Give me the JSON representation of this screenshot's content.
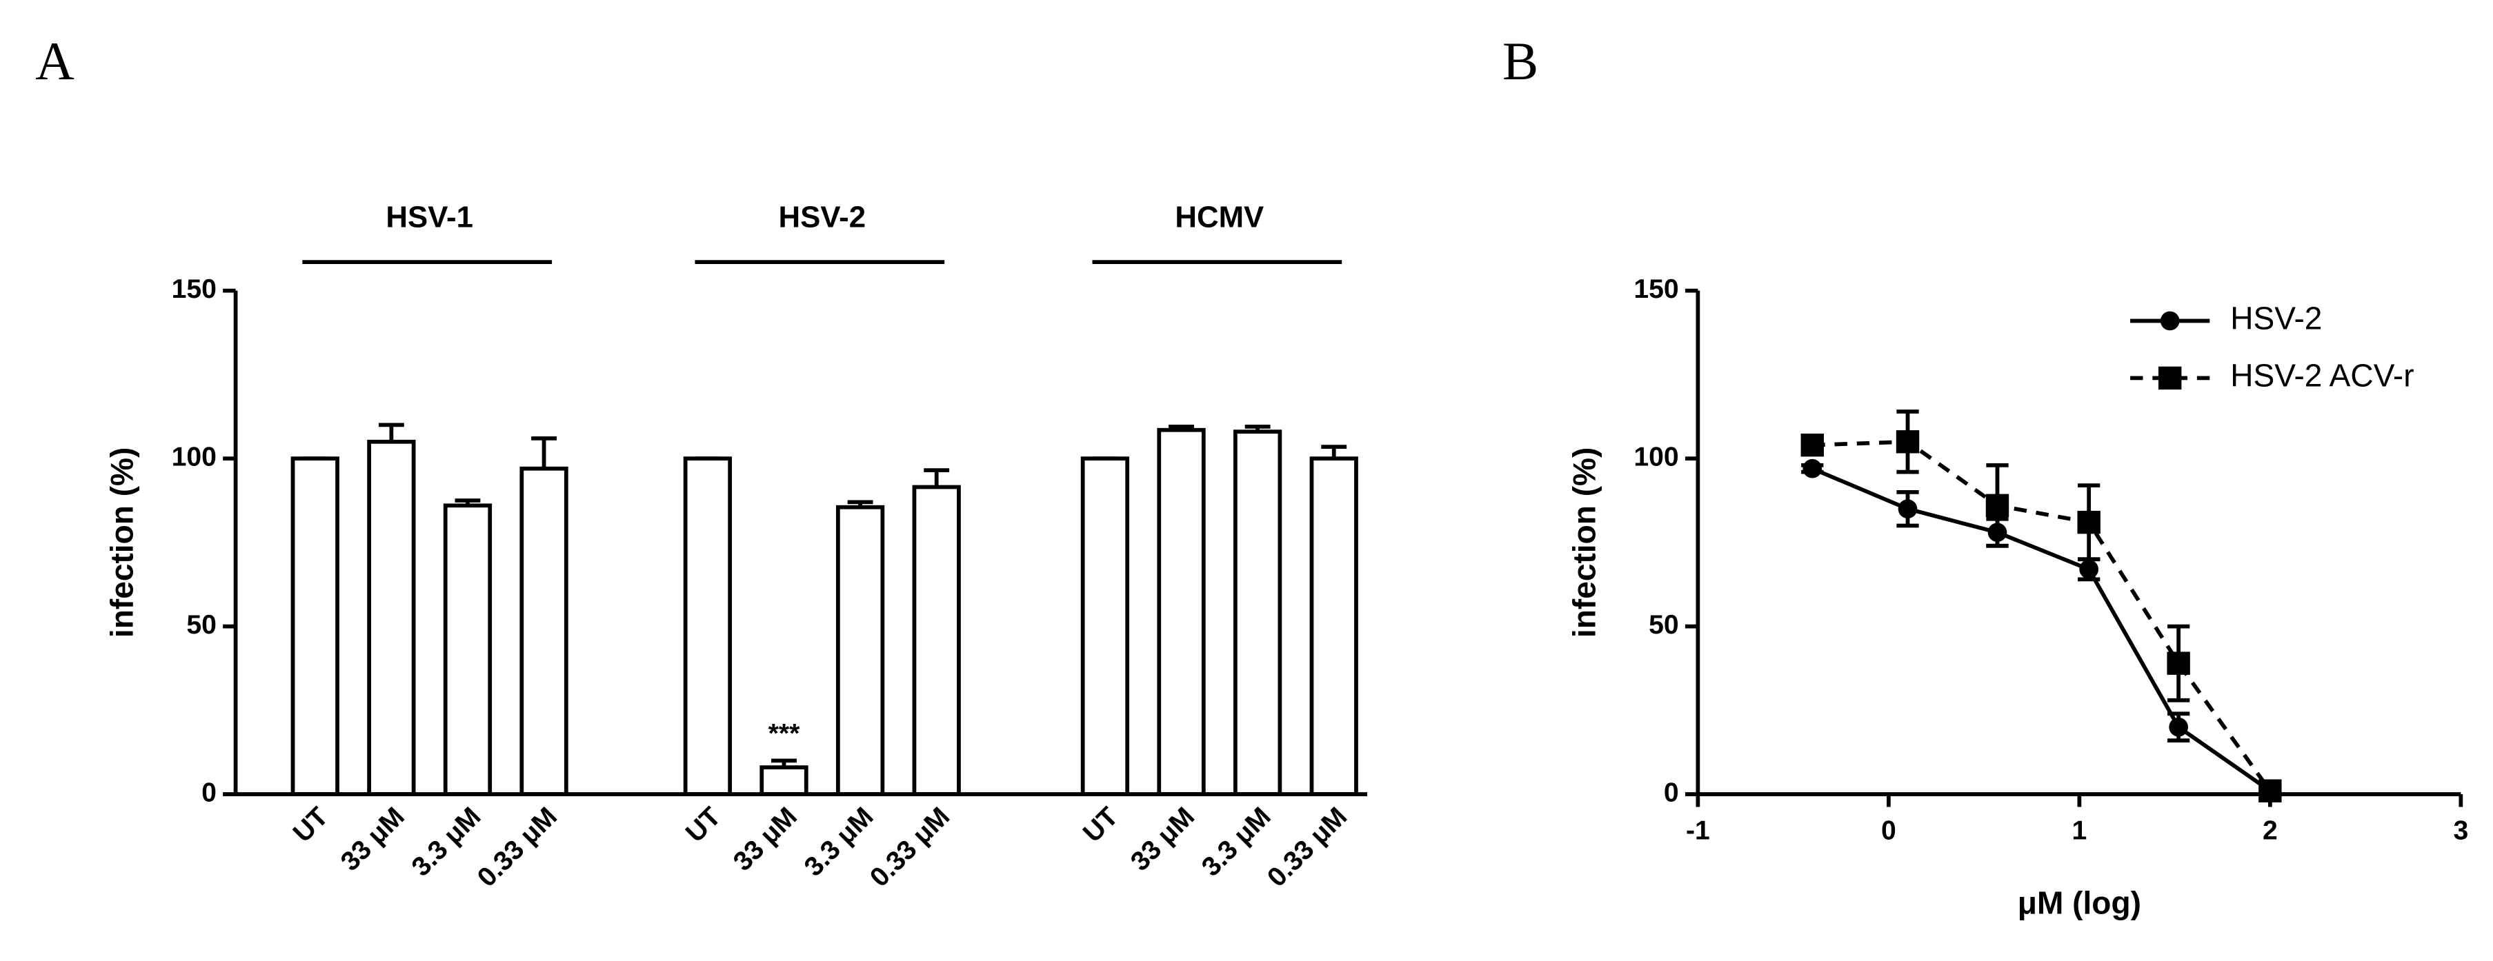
{
  "chart_data": [
    {
      "type": "bar",
      "panel_label": "A",
      "ylabel": "infection (%)",
      "ylim": [
        0,
        150
      ],
      "yticks": [
        0,
        50,
        100,
        150
      ],
      "color": "#ffffff",
      "groups": [
        {
          "name": "HSV-1",
          "categories": [
            "UT",
            "33 μM",
            "3.3 μM",
            "0.33 μM"
          ],
          "values": [
            100,
            105,
            86,
            97
          ],
          "errors": [
            0,
            5,
            1.5,
            9
          ],
          "significance": [
            null,
            null,
            null,
            null
          ]
        },
        {
          "name": "HSV-2",
          "categories": [
            "UT",
            "33 μM",
            "3.3 μM",
            "0.33 μM"
          ],
          "values": [
            100,
            8,
            85.5,
            91.5
          ],
          "errors": [
            0,
            2,
            1.5,
            5
          ],
          "significance": [
            null,
            "***",
            null,
            null
          ]
        },
        {
          "name": "HCMV",
          "categories": [
            "UT",
            "33 μM",
            "3.3 μM",
            "0.33 μM"
          ],
          "values": [
            100,
            108.5,
            108,
            100
          ],
          "errors": [
            0,
            1,
            1.5,
            3.5
          ],
          "significance": [
            null,
            null,
            null,
            null
          ]
        }
      ]
    },
    {
      "type": "line",
      "panel_label": "B",
      "ylabel": "infection (%)",
      "xlabel": "μM (log)",
      "x": [
        -0.4,
        0.1,
        0.57,
        1.05,
        1.52,
        2.0
      ],
      "xlim": [
        -1,
        3
      ],
      "xticks": [
        -1,
        0,
        1,
        2,
        3
      ],
      "ylim": [
        0,
        150
      ],
      "yticks": [
        0,
        50,
        100,
        150
      ],
      "legend": "upper right",
      "series": [
        {
          "name": "HSV-2",
          "color": "#000000",
          "dash": "solid",
          "marker": "circle",
          "values": [
            97,
            85,
            78,
            67,
            20,
            1
          ],
          "errors": [
            1,
            5,
            4,
            3,
            4,
            1
          ]
        },
        {
          "name": "HSV-2 ACV-r",
          "color": "#000000",
          "dash": "dashed",
          "marker": "square",
          "values": [
            104,
            105,
            86,
            81,
            39,
            1
          ],
          "errors": [
            1,
            9,
            12,
            11,
            11,
            1
          ]
        }
      ]
    }
  ]
}
